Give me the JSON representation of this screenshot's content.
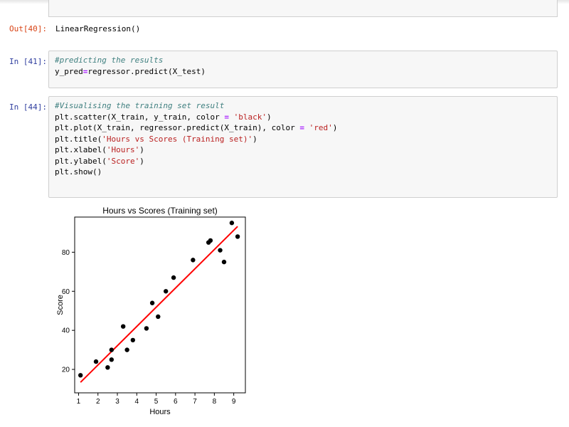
{
  "prev_output": {
    "prompt": "Out[40]:",
    "text": "LinearRegression()"
  },
  "cell41": {
    "prompt": "In [41]:",
    "comment": "#predicting the results",
    "code": [
      "y_pred",
      "=",
      "regressor.predict(X_test)"
    ]
  },
  "cell44": {
    "prompt": "In [44]:",
    "comment": "#Visualising the training set result",
    "line1": {
      "pre": "plt.scatter(X_train, y_train, color ",
      "op": "=",
      "mid": " ",
      "str": "'black'",
      "post": ")"
    },
    "line2": {
      "pre": "plt.plot(X_train, regressor.predict(X_train), color ",
      "op": "=",
      "mid": " ",
      "str": "'red'",
      "post": ")"
    },
    "line3": {
      "pre": "plt.title(",
      "str": "'Hours vs Scores (Training set)'",
      "post": ")"
    },
    "line4": {
      "pre": "plt.xlabel(",
      "str": "'Hours'",
      "post": ")"
    },
    "line5": {
      "pre": "plt.ylabel(",
      "str": "'Score'",
      "post": ")"
    },
    "line6": "plt.show()"
  },
  "chart_data": {
    "type": "scatter",
    "title": "Hours vs Scores (Training set)",
    "xlabel": "Hours",
    "ylabel": "Score",
    "xlim": [
      0.8,
      9.6
    ],
    "ylim": [
      8,
      98
    ],
    "xticks": [
      1,
      2,
      3,
      4,
      5,
      6,
      7,
      8,
      9
    ],
    "yticks": [
      20,
      40,
      60,
      80
    ],
    "grid": false,
    "series": [
      {
        "kind": "scatter",
        "color": "#000000",
        "x": [
          1.1,
          1.9,
          2.5,
          2.7,
          2.7,
          3.3,
          3.5,
          3.8,
          4.5,
          4.8,
          5.1,
          5.5,
          5.9,
          6.9,
          7.7,
          7.8,
          8.3,
          8.5,
          8.9,
          9.2
        ],
        "y": [
          17,
          24,
          21,
          25,
          30,
          42,
          30,
          35,
          41,
          54,
          47,
          60,
          67,
          76,
          85,
          86,
          81,
          75,
          95,
          88
        ]
      },
      {
        "kind": "line",
        "color": "#ff0000",
        "x": [
          1.1,
          9.2
        ],
        "y": [
          13.4,
          93.2
        ]
      }
    ]
  }
}
